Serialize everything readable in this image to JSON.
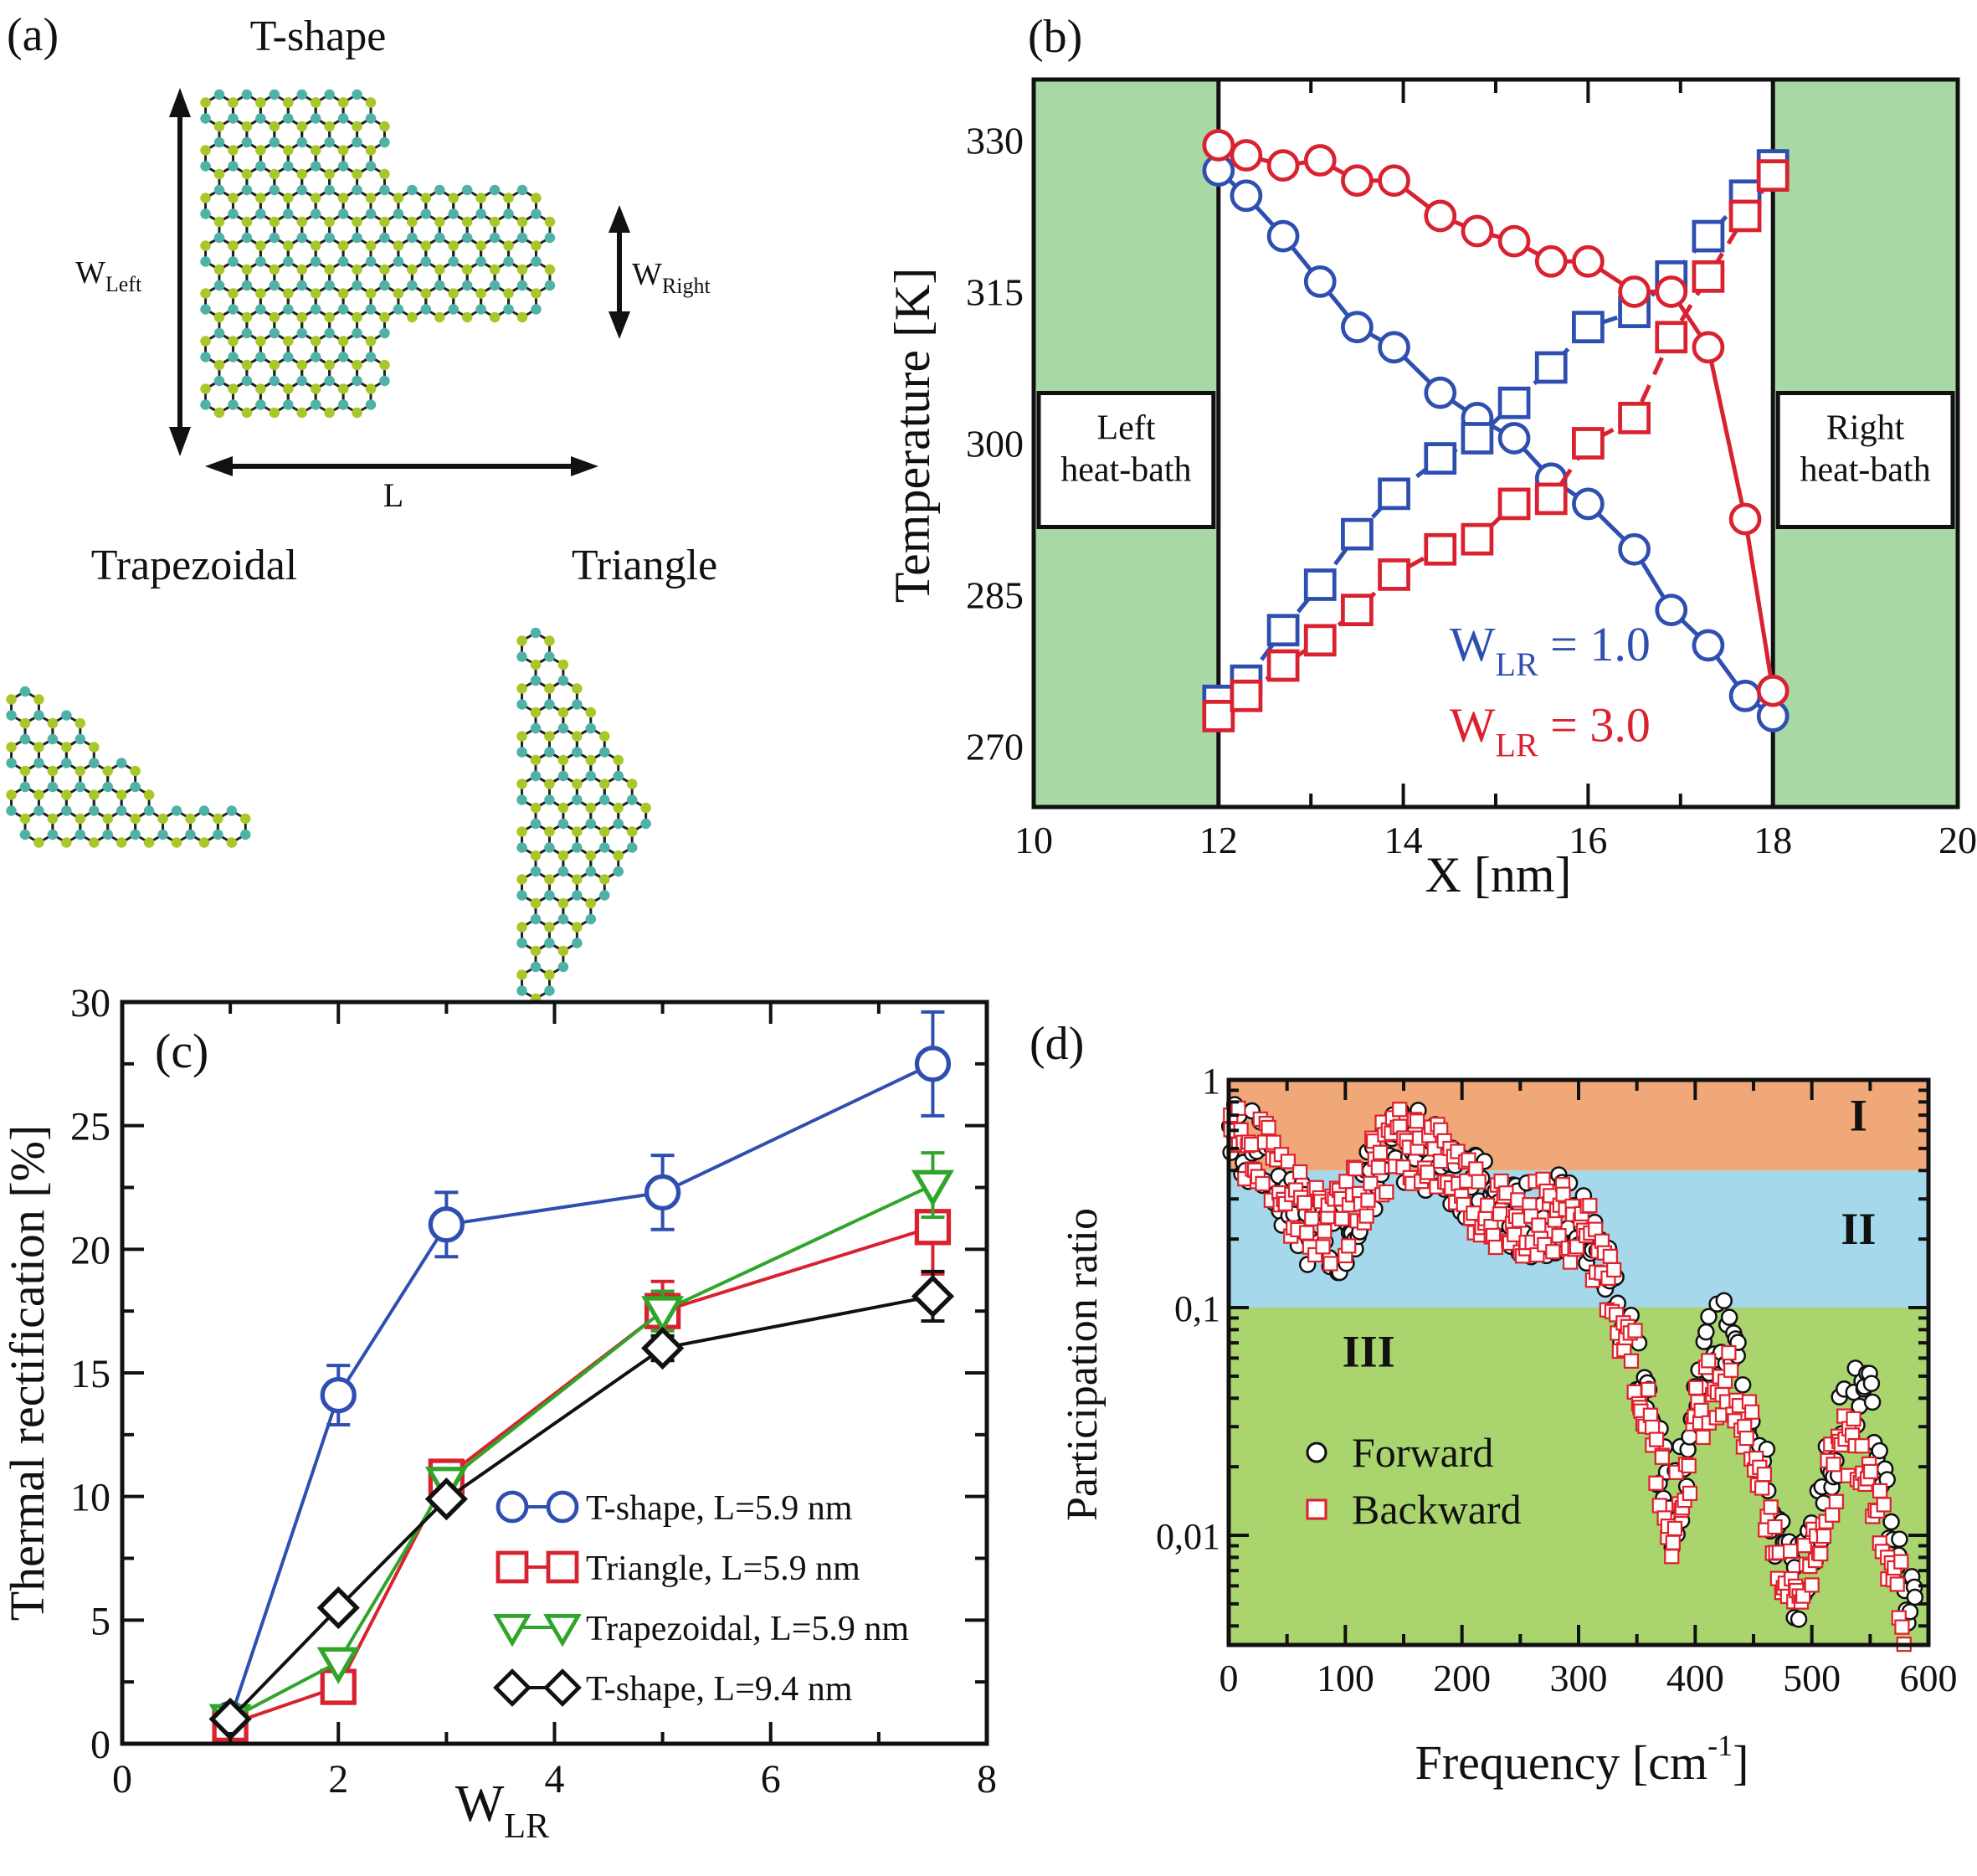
{
  "panels": {
    "a": {
      "label": "(a)",
      "tshape_title": "T-shape",
      "w_left": {
        "main": "W",
        "sub": "Left"
      },
      "w_right": {
        "main": "W",
        "sub": "Right"
      },
      "length_label": "L",
      "trapezoidal_title": "Trapezoidal",
      "triangle_title": "Triangle",
      "atom_colors": {
        "light": "#a8c82a",
        "dark": "#4eb3a6",
        "bond": "#222222"
      }
    }
  },
  "chart_data": [
    {
      "id": "b",
      "panel_label": "(b)",
      "type": "line",
      "xlabel": "X [nm]",
      "ylabel": "Temperature [K]",
      "xlim": [
        10,
        20
      ],
      "ylim": [
        264,
        336
      ],
      "xticks": [
        10,
        12,
        14,
        16,
        18,
        20
      ],
      "yticks": [
        270,
        285,
        300,
        315,
        330
      ],
      "regions": [
        {
          "name": "left-heat-bath",
          "x": [
            10,
            12
          ],
          "label": [
            "Left",
            "heat-bath"
          ],
          "color": "#a8d8a6"
        },
        {
          "name": "right-heat-bath",
          "x": [
            18,
            20
          ],
          "label": [
            "Right",
            "heat-bath"
          ],
          "color": "#a8d8a6"
        }
      ],
      "annotations": [
        {
          "main": "W",
          "sub": "LR",
          "rest": " = 1.0",
          "color": "#2f4fb0"
        },
        {
          "main": "W",
          "sub": "LR",
          "rest": " = 3.0",
          "color": "#d9222f"
        }
      ],
      "series": [
        {
          "name": "WLR=1.0 forward",
          "color": "#2f4fb0",
          "marker": "circle",
          "dash": false,
          "x": [
            12.0,
            12.3,
            12.7,
            13.1,
            13.5,
            13.9,
            14.4,
            14.8,
            15.2,
            15.6,
            16.0,
            16.5,
            16.9,
            17.3,
            17.7,
            18.0
          ],
          "y": [
            327,
            324.5,
            320.5,
            316,
            311.5,
            309.5,
            305,
            302.5,
            300.5,
            296.5,
            294,
            289.5,
            283.5,
            280,
            275,
            273
          ]
        },
        {
          "name": "WLR=1.0 backward",
          "color": "#2f4fb0",
          "marker": "square",
          "dash": true,
          "x": [
            12.0,
            12.3,
            12.7,
            13.1,
            13.5,
            13.9,
            14.4,
            14.8,
            15.2,
            15.6,
            16.0,
            16.5,
            16.9,
            17.3,
            17.7,
            18.0
          ],
          "y": [
            274.5,
            276.5,
            281.5,
            286,
            291,
            295,
            298.5,
            300.5,
            304,
            307.5,
            311.5,
            313,
            316.5,
            320.5,
            324.5,
            327.5
          ]
        },
        {
          "name": "WLR=3.0 forward",
          "color": "#d9222f",
          "marker": "circle",
          "dash": false,
          "x": [
            12.0,
            12.3,
            12.7,
            13.1,
            13.5,
            13.9,
            14.4,
            14.8,
            15.2,
            15.6,
            16.0,
            16.5,
            16.9,
            17.3,
            17.7,
            18.0
          ],
          "y": [
            329.5,
            328.5,
            327.5,
            328,
            326,
            326,
            322.5,
            321,
            320,
            318,
            318,
            315,
            315,
            309.5,
            292.5,
            275.5
          ]
        },
        {
          "name": "WLR=3.0 backward",
          "color": "#d9222f",
          "marker": "square",
          "dash": true,
          "x": [
            12.0,
            12.3,
            12.7,
            13.1,
            13.5,
            13.9,
            14.4,
            14.8,
            15.2,
            15.6,
            16.0,
            16.5,
            16.9,
            17.3,
            17.7,
            18.0
          ],
          "y": [
            273,
            275,
            278,
            280.5,
            283.5,
            287,
            289.5,
            290.5,
            294,
            294.5,
            300,
            302.5,
            310.5,
            316.5,
            322.5,
            326.5
          ]
        }
      ]
    },
    {
      "id": "c",
      "panel_label": "(c)",
      "type": "line",
      "xlabel": {
        "main": "W",
        "sub": "LR"
      },
      "ylabel": "Thermal rectification [%]",
      "xlim": [
        0,
        8
      ],
      "ylim": [
        0,
        30
      ],
      "xticks": [
        0,
        2,
        4,
        6,
        8
      ],
      "yticks": [
        0,
        5,
        10,
        15,
        20,
        25,
        30
      ],
      "legend_position": "lower-right",
      "series": [
        {
          "name": "T-shape, L=5.9 nm",
          "color": "#2f4fb0",
          "marker": "circle",
          "x": [
            1,
            2,
            3,
            5,
            7.5
          ],
          "y": [
            1.0,
            14.1,
            21.0,
            22.3,
            27.5
          ],
          "err": [
            0,
            1.2,
            1.3,
            1.5,
            2.1
          ]
        },
        {
          "name": "Triangle, L=5.9 nm",
          "color": "#d9222f",
          "marker": "square",
          "x": [
            1,
            2,
            3,
            5,
            7.5
          ],
          "y": [
            0.8,
            2.3,
            10.8,
            17.5,
            20.9
          ],
          "err": [
            0,
            0,
            0,
            1.2,
            1.9
          ]
        },
        {
          "name": "Trapezoidal, L=5.9 nm",
          "color": "#2fa52a",
          "marker": "triangle-down",
          "x": [
            1,
            2,
            3,
            5,
            7.5
          ],
          "y": [
            1.0,
            3.3,
            10.6,
            17.5,
            22.6
          ],
          "err": [
            0,
            0,
            0,
            0.8,
            1.3
          ]
        },
        {
          "name": "T-shape, L=9.4 nm",
          "color": "#111111",
          "marker": "diamond",
          "x": [
            1,
            2,
            3,
            5,
            7.5
          ],
          "y": [
            1.0,
            5.5,
            9.9,
            16.0,
            18.1
          ],
          "err": [
            0,
            0,
            0,
            0.5,
            1.0
          ]
        }
      ]
    },
    {
      "id": "d",
      "panel_label": "(d)",
      "type": "scatter",
      "xlabel": "Frequency [cm",
      "xlabel_sup": "-1",
      "xlabel_end": "]",
      "ylabel": "Participation ratio",
      "xlim": [
        0,
        600
      ],
      "ylim": [
        0.0033,
        1
      ],
      "yscale": "log",
      "xticks": [
        0,
        100,
        200,
        300,
        400,
        500,
        600
      ],
      "ytick_labels": [
        {
          "v": 1,
          "t": "1"
        },
        {
          "v": 0.1,
          "t": "0,1"
        },
        {
          "v": 0.01,
          "t": "0,01"
        }
      ],
      "regions": [
        {
          "name": "I",
          "y": [
            0.4,
            1
          ],
          "color": "#f0a878"
        },
        {
          "name": "II",
          "y": [
            0.1,
            0.4
          ],
          "color": "#a4d8ea"
        },
        {
          "name": "III",
          "y": [
            0.0033,
            0.1
          ],
          "color": "#a9d46e"
        }
      ],
      "legend_position": "lower-left",
      "series": [
        {
          "name": "Forward",
          "marker": "circle",
          "color": "#111111",
          "envelope_x": [
            0,
            10,
            20,
            30,
            40,
            50,
            60,
            70,
            80,
            90,
            100,
            110,
            120,
            130,
            140,
            150,
            160,
            170,
            180,
            190,
            200,
            210,
            220,
            230,
            240,
            250,
            260,
            270,
            280,
            290,
            300,
            310,
            320,
            330,
            340,
            350,
            360,
            370,
            380,
            390,
            400,
            410,
            420,
            430,
            440,
            450,
            460,
            470,
            480,
            490,
            500,
            510,
            520,
            530,
            540,
            550,
            560,
            570,
            580,
            590
          ],
          "envelope_y": [
            0.6,
            0.55,
            0.5,
            0.42,
            0.35,
            0.3,
            0.25,
            0.22,
            0.2,
            0.2,
            0.22,
            0.28,
            0.35,
            0.42,
            0.48,
            0.5,
            0.5,
            0.48,
            0.45,
            0.42,
            0.38,
            0.33,
            0.3,
            0.27,
            0.25,
            0.24,
            0.24,
            0.25,
            0.26,
            0.25,
            0.23,
            0.2,
            0.16,
            0.12,
            0.09,
            0.06,
            0.035,
            0.02,
            0.013,
            0.018,
            0.04,
            0.065,
            0.075,
            0.07,
            0.05,
            0.03,
            0.018,
            0.01,
            0.007,
            0.006,
            0.009,
            0.016,
            0.025,
            0.035,
            0.04,
            0.035,
            0.02,
            0.01,
            0.006,
            0.0038
          ]
        },
        {
          "name": "Backward",
          "marker": "square",
          "color": "#e0202c",
          "envelope_x": [
            0,
            10,
            20,
            30,
            40,
            50,
            60,
            70,
            80,
            90,
            100,
            110,
            120,
            130,
            140,
            150,
            160,
            170,
            180,
            190,
            200,
            210,
            220,
            230,
            240,
            250,
            260,
            270,
            280,
            290,
            300,
            310,
            320,
            330,
            340,
            350,
            360,
            370,
            380,
            390,
            400,
            410,
            420,
            430,
            440,
            450,
            460,
            470,
            480,
            490,
            500,
            510,
            520,
            530,
            540,
            550,
            560,
            570,
            580
          ],
          "envelope_y": [
            1.0,
            0.55,
            0.5,
            0.45,
            0.38,
            0.32,
            0.28,
            0.25,
            0.23,
            0.23,
            0.25,
            0.3,
            0.38,
            0.45,
            0.5,
            0.52,
            0.52,
            0.5,
            0.46,
            0.42,
            0.37,
            0.32,
            0.28,
            0.26,
            0.24,
            0.24,
            0.25,
            0.26,
            0.26,
            0.24,
            0.22,
            0.19,
            0.15,
            0.11,
            0.08,
            0.055,
            0.03,
            0.018,
            0.012,
            0.016,
            0.03,
            0.045,
            0.05,
            0.045,
            0.035,
            0.022,
            0.014,
            0.009,
            0.006,
            0.006,
            0.008,
            0.013,
            0.02,
            0.025,
            0.026,
            0.02,
            0.012,
            0.007,
            0.0045
          ]
        }
      ]
    }
  ]
}
